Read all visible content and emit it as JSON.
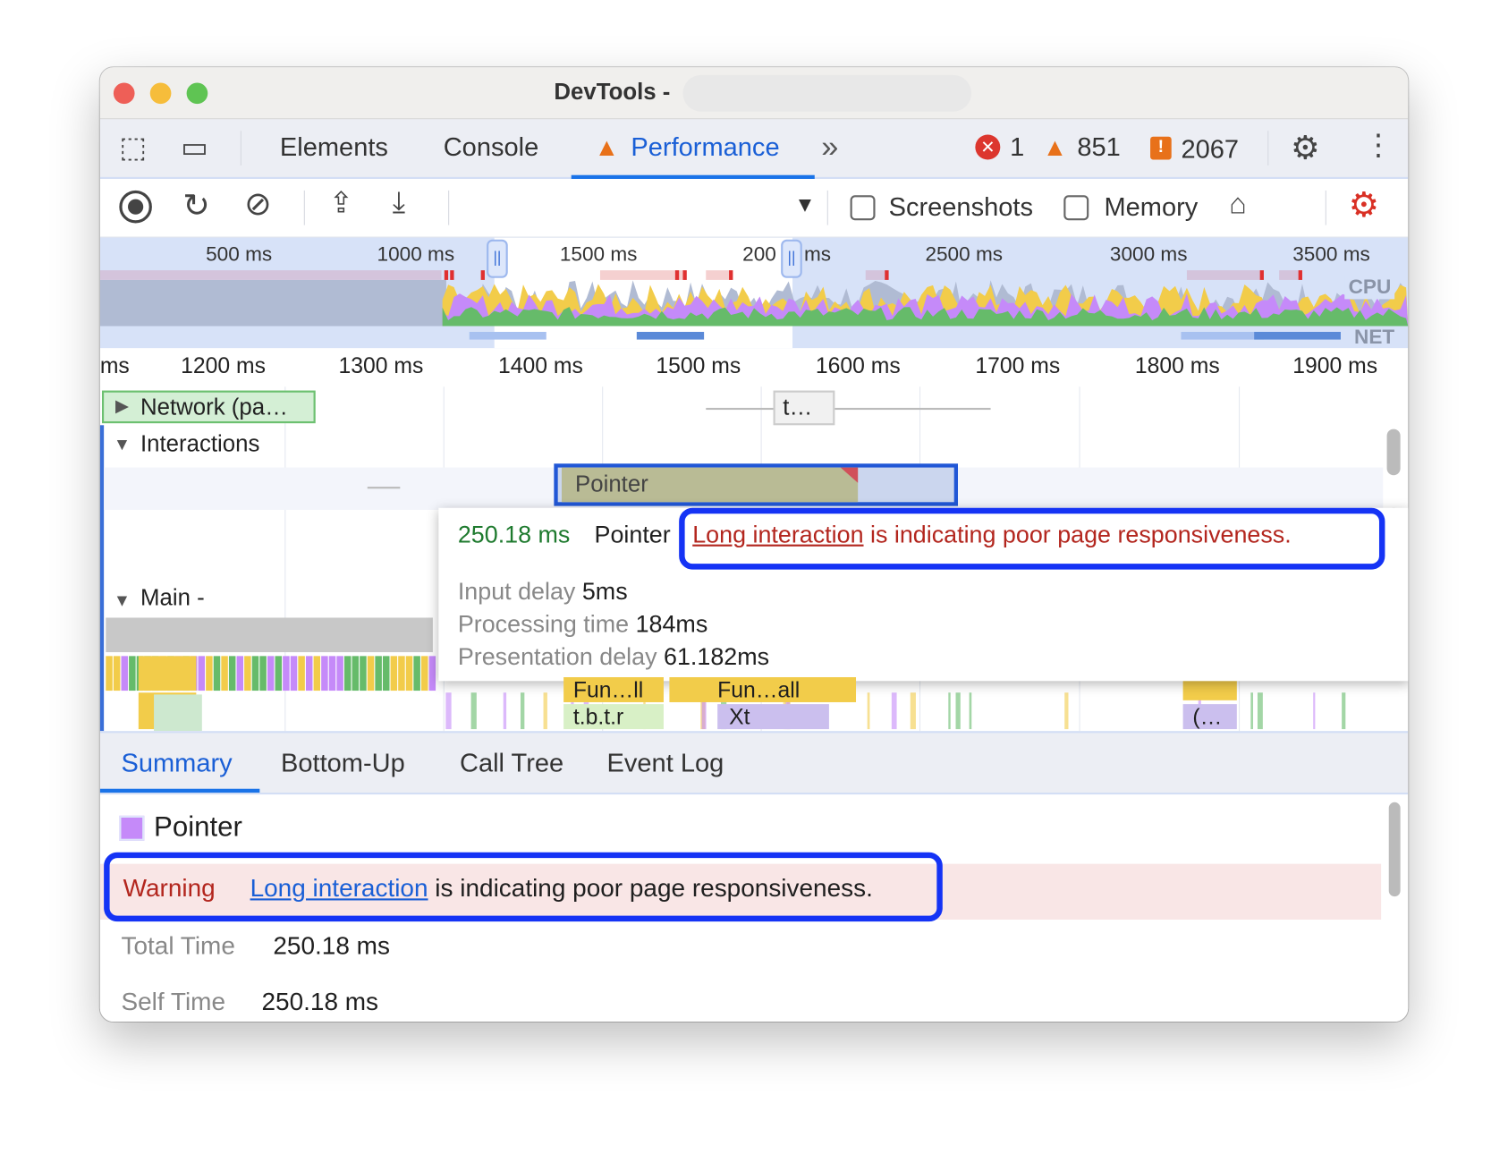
{
  "window": {
    "title": "DevTools -"
  },
  "tabs": {
    "elements": "Elements",
    "console": "Console",
    "performance": "Performance",
    "more": "»",
    "errors": "1",
    "warnings": "851",
    "issues": "2067"
  },
  "toolbar": {
    "screenshots": "Screenshots",
    "memory": "Memory",
    "screenshots_checked": false,
    "memory_checked": false
  },
  "overview": {
    "ticks": [
      "500 ms",
      "1000 ms",
      "1500 ms",
      "200",
      "ms",
      "2500 ms",
      "3000 ms",
      "3500 ms"
    ],
    "cpu_label": "CPU",
    "net_label": "NET"
  },
  "ruler": {
    "ticks": [
      "ms",
      "1200 ms",
      "1300 ms",
      "1400 ms",
      "1500 ms",
      "1600 ms",
      "1700 ms",
      "1800 ms",
      "1900 ms"
    ]
  },
  "tracks": {
    "network": "Network (pa…",
    "network_item": "t…",
    "interactions": "Interactions",
    "pointer": "Pointer",
    "main": "Main -"
  },
  "flame": {
    "a": "Fun…ll",
    "b": "Fun…all",
    "c": "t.b.t.r",
    "d": "Xt",
    "e": "(…"
  },
  "tooltip": {
    "duration": "250.18 ms",
    "name": "Pointer",
    "link": "Long interaction",
    "message": " is indicating poor page responsiveness.",
    "rows": [
      {
        "label": "Input delay",
        "value": "5ms"
      },
      {
        "label": "Processing time",
        "value": "184ms"
      },
      {
        "label": "Presentation delay",
        "value": "61.182ms"
      }
    ]
  },
  "bottom_tabs": [
    "Summary",
    "Bottom-Up",
    "Call Tree",
    "Event Log"
  ],
  "summary": {
    "title": "Pointer",
    "warning_label": "Warning",
    "warning_link": "Long interaction",
    "warning_text": " is indicating poor page responsiveness.",
    "total_label": "Total Time",
    "total_value": "250.18 ms",
    "self_label": "Self Time",
    "self_value": "250.18 ms"
  },
  "colors": {
    "accent": "#1a73e8",
    "highlight": "#1533f5",
    "warning": "#b3261e",
    "scripting": "#f2cc4a",
    "rendering": "#c58af9",
    "painting": "#66bb6a",
    "pointer": "#c58af9"
  }
}
